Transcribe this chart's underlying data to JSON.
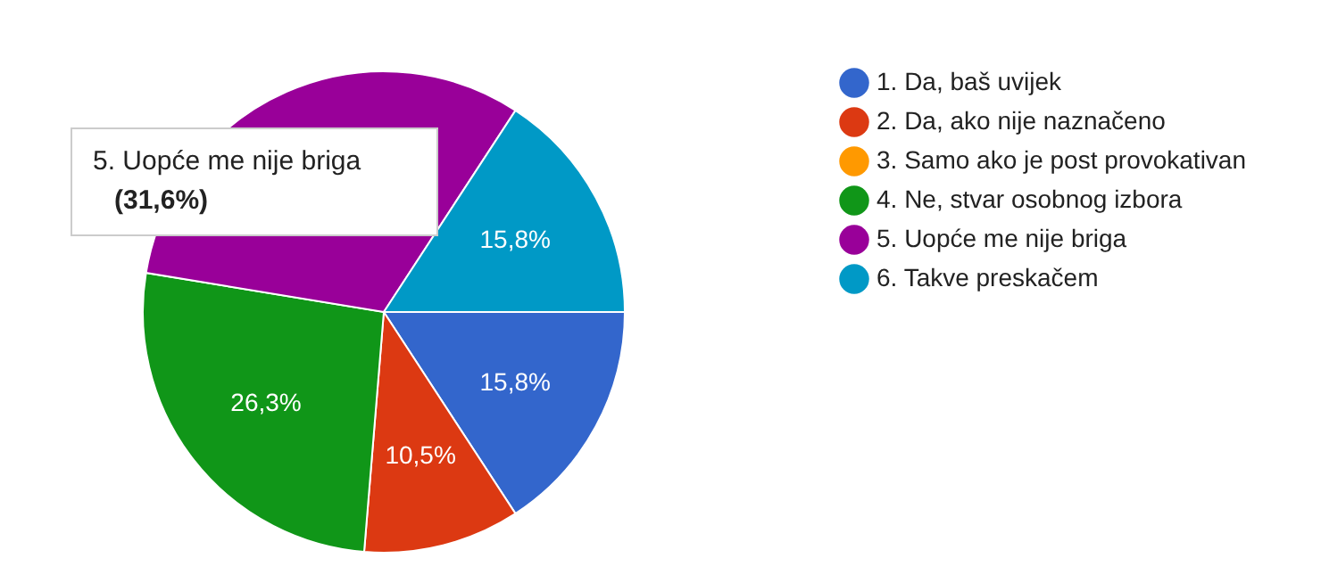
{
  "chart_data": {
    "type": "pie",
    "categories": [
      "1. Da, baš uvijek",
      "2. Da, ako nije naznačeno",
      "3. Samo ako je post provokativan",
      "4. Ne, stvar osobnog izbora",
      "5. Uopće me nije briga",
      "6. Takve preskačem"
    ],
    "values": [
      15.8,
      10.5,
      0,
      26.3,
      31.6,
      15.8
    ],
    "colors": [
      "#3366cc",
      "#dc3912",
      "#ff9900",
      "#109618",
      "#990099",
      "#0099c6"
    ],
    "value_labels": [
      "15,8%",
      "10,5%",
      null,
      "26,3%",
      null,
      "15,8%"
    ],
    "legend": "right",
    "annotations": [
      "5. Uopće me nije briga\n(31,6%)"
    ]
  }
}
